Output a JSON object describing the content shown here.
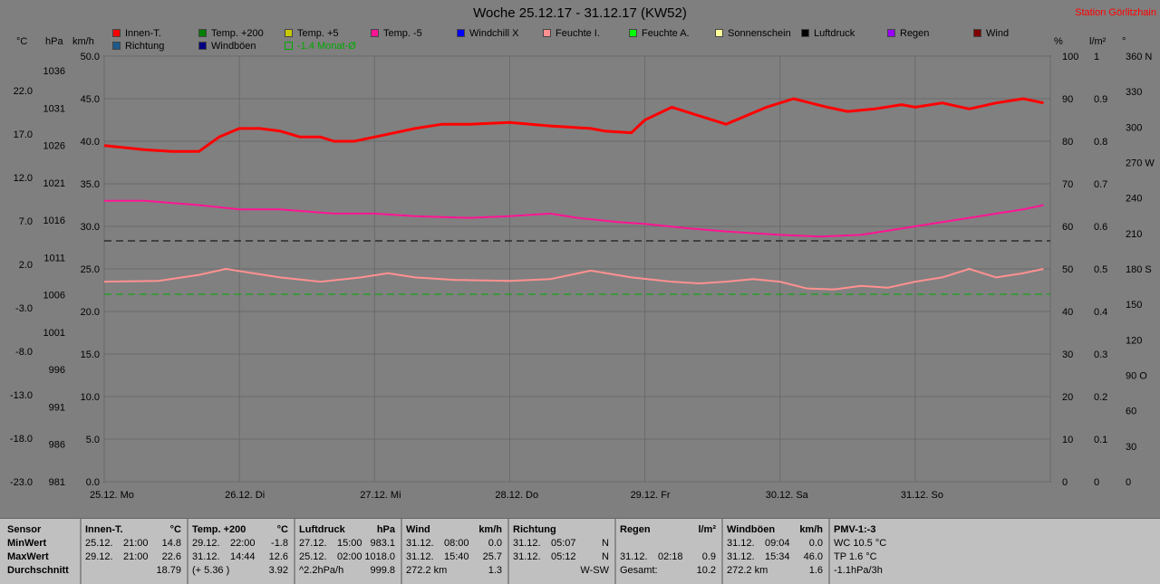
{
  "title": "Woche 25.12.17 - 31.12.17 (KW52)",
  "station": "Station Görlitzhain",
  "legend": [
    {
      "label": "Innen-T.",
      "color": "#ff0000"
    },
    {
      "label": "Temp. +200",
      "color": "#008000"
    },
    {
      "label": "Temp. +5",
      "color": "#c8c800"
    },
    {
      "label": "Temp. -5",
      "color": "#ff1493"
    },
    {
      "label": "Windchill X",
      "color": "#0000ff"
    },
    {
      "label": "Feuchte I.",
      "color": "#ff9090"
    },
    {
      "label": "Feuchte A.",
      "color": "#00ff00"
    },
    {
      "label": "Sonnenschein",
      "color": "#ffff99"
    },
    {
      "label": "Luftdruck",
      "color": "#000000"
    },
    {
      "label": "Regen",
      "color": "#9900ff"
    },
    {
      "label": "Wind",
      "color": "#800000"
    },
    {
      "label": "Richtung",
      "color": "#1e5a8c"
    },
    {
      "label": "Windböen",
      "color": "#000080"
    },
    {
      "label": "-1.4 Monat-Ø",
      "color": "#00aa00"
    }
  ],
  "units": {
    "c": "°C",
    "hpa": "hPa",
    "kmh": "km/h",
    "pct": "%",
    "lm2": "l/m²",
    "deg": "°"
  },
  "chart_data": {
    "type": "line",
    "x": [
      "25.12. Mo",
      "26.12. Di",
      "27.12. Mi",
      "28.12. Do",
      "29.12. Fr",
      "30.12. Sa",
      "31.12. So"
    ],
    "axes": {
      "temp_c": [
        "22.0",
        "17.0",
        "12.0",
        "7.0",
        "2.0",
        "-3.0",
        "-8.0",
        "-13.0",
        "-18.0",
        "-23.0"
      ],
      "pressure_hpa": [
        "1036",
        "1031",
        "1026",
        "1021",
        "1016",
        "1011",
        "1006",
        "1001",
        "996",
        "991",
        "986",
        "981"
      ],
      "wind_kmh": [
        "50.0",
        "45.0",
        "40.0",
        "35.0",
        "30.0",
        "25.0",
        "20.0",
        "15.0",
        "10.0",
        "5.0",
        "0.0"
      ],
      "humidity_pct": [
        "100",
        "90",
        "80",
        "70",
        "60",
        "50",
        "40",
        "30",
        "20",
        "10",
        "0"
      ],
      "rain_lm2": [
        "1",
        "0.9",
        "0.8",
        "0.7",
        "0.6",
        "0.5",
        "0.4",
        "0.3",
        "0.2",
        "0.1",
        "0"
      ],
      "direction": [
        "360 N",
        "330",
        "300",
        "270 W",
        "240",
        "210",
        "180 S",
        "150",
        "120",
        "90 O",
        "60",
        "30",
        "0"
      ]
    },
    "ylim_kmh": [
      0,
      50
    ],
    "grid": true,
    "series": [
      {
        "name": "Innen-T.",
        "color": "#ff0000",
        "width": 3,
        "x": [
          0,
          0.3,
          0.5,
          0.7,
          0.85,
          1.0,
          1.15,
          1.3,
          1.45,
          1.6,
          1.7,
          1.85,
          2.0,
          2.3,
          2.5,
          2.7,
          3.0,
          3.3,
          3.6,
          3.7,
          3.9,
          4.0,
          4.2,
          4.4,
          4.6,
          4.9,
          5.1,
          5.35,
          5.5,
          5.7,
          5.9,
          6.0,
          6.2,
          6.4,
          6.6,
          6.8,
          6.95
        ],
        "y": [
          39.5,
          39,
          38.8,
          38.8,
          40.5,
          41.5,
          41.5,
          41.2,
          40.5,
          40.5,
          40,
          40,
          40.5,
          41.5,
          42,
          42,
          42.2,
          41.8,
          41.5,
          41.2,
          41,
          42.5,
          44,
          43,
          42,
          44,
          45,
          44,
          43.5,
          43.8,
          44.3,
          44,
          44.5,
          43.8,
          44.5,
          45,
          44.5
        ]
      },
      {
        "name": "Temp. -5",
        "color": "#ff1493",
        "width": 2,
        "x": [
          0,
          0.3,
          0.7,
          1.0,
          1.3,
          1.7,
          2.0,
          2.3,
          2.7,
          3.0,
          3.3,
          3.5,
          3.8,
          4.0,
          4.3,
          4.6,
          5.0,
          5.3,
          5.6,
          5.8,
          6.0,
          6.2,
          6.4,
          6.6,
          6.8,
          6.95
        ],
        "y": [
          33,
          33,
          32.5,
          32,
          32,
          31.5,
          31.5,
          31.2,
          31,
          31.2,
          31.5,
          31,
          30.5,
          30.3,
          29.8,
          29.4,
          29,
          28.8,
          29,
          29.5,
          30,
          30.5,
          31,
          31.5,
          32,
          32.5
        ]
      },
      {
        "name": "Feuchte I.",
        "color": "#ff9090",
        "width": 2,
        "x": [
          0,
          0.4,
          0.7,
          0.9,
          1.1,
          1.3,
          1.6,
          1.9,
          2.1,
          2.3,
          2.6,
          3.0,
          3.3,
          3.6,
          3.9,
          4.2,
          4.4,
          4.6,
          4.8,
          5.0,
          5.2,
          5.4,
          5.6,
          5.8,
          6.0,
          6.2,
          6.4,
          6.6,
          6.8,
          6.95
        ],
        "y": [
          23.5,
          23.6,
          24.3,
          25,
          24.5,
          24,
          23.5,
          24,
          24.5,
          24,
          23.7,
          23.6,
          23.8,
          24.8,
          24,
          23.5,
          23.3,
          23.5,
          23.8,
          23.5,
          22.7,
          22.6,
          23,
          22.8,
          23.5,
          24,
          25,
          24,
          24.5,
          25
        ]
      }
    ]
  },
  "table": {
    "rowlabels": [
      "Sensor",
      "MinWert",
      "MaxWert",
      "Durchschnitt"
    ],
    "blocks": [
      {
        "name": "Innen-T.",
        "unit": "°C",
        "rows": [
          [
            "25.12.",
            "21:00",
            "14.8"
          ],
          [
            "29.12.",
            "21:00",
            "22.6"
          ],
          [
            "",
            "",
            "18.79"
          ]
        ]
      },
      {
        "name": "Temp. +200",
        "unit": "°C",
        "rows": [
          [
            "29.12.",
            "22:00",
            "-1.8"
          ],
          [
            "31.12.",
            "14:44",
            "12.6"
          ],
          [
            "(+ 5.36 )",
            "",
            "3.92"
          ]
        ]
      },
      {
        "name": "Luftdruck",
        "unit": "hPa",
        "rows": [
          [
            "27.12.",
            "15:00",
            "983.1"
          ],
          [
            "25.12.",
            "02:00",
            "1018.0"
          ],
          [
            "^2.2hPa/h",
            "",
            "999.8"
          ]
        ]
      },
      {
        "name": "Wind",
        "unit": "km/h",
        "rows": [
          [
            "31.12.",
            "08:00",
            "0.0"
          ],
          [
            "31.12.",
            "15:40",
            "25.7"
          ],
          [
            "272.2 km",
            "",
            "1.3"
          ]
        ]
      },
      {
        "name": "Richtung",
        "unit": "",
        "rows": [
          [
            "31.12.",
            "05:07",
            "N"
          ],
          [
            "31.12.",
            "05:12",
            "N"
          ],
          [
            "",
            "",
            "W-SW"
          ]
        ]
      },
      {
        "name": "Regen",
        "unit": "l/m²",
        "rows": [
          [
            "",
            "",
            ""
          ],
          [
            "31.12.",
            "02:18",
            "0.9"
          ],
          [
            "Gesamt:",
            "",
            "10.2"
          ]
        ]
      },
      {
        "name": "Windböen",
        "unit": "km/h",
        "rows": [
          [
            "31.12.",
            "09:04",
            "0.0"
          ],
          [
            "31.12.",
            "15:34",
            "46.0"
          ],
          [
            "272.2 km",
            "",
            "1.6"
          ]
        ]
      },
      {
        "name": "PMV-1:-3",
        "unit": "",
        "rows": [
          [
            "WC 10.5 °C",
            "",
            ""
          ],
          [
            "TP 1.6 °C",
            "",
            ""
          ],
          [
            "-1.1hPa/3h",
            "",
            ""
          ]
        ]
      }
    ]
  }
}
